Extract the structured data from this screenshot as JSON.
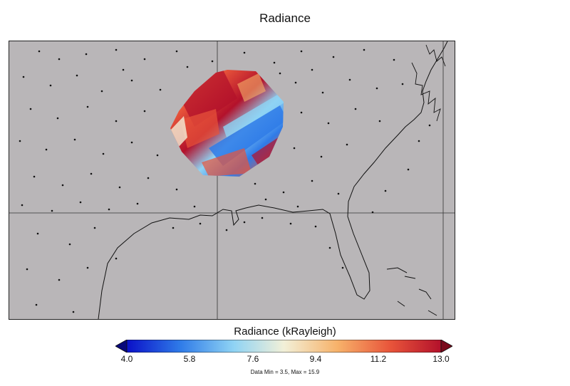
{
  "title": "Radiance",
  "colorbar": {
    "label": "Radiance (kRayleigh)",
    "ticks": [
      "4.0",
      "5.8",
      "7.6",
      "9.4",
      "11.2",
      "13.0"
    ],
    "min": 4.0,
    "max": 13.0,
    "colormap": [
      "#0a10c8",
      "#2f7be8",
      "#8fd3f4",
      "#f2f0d8",
      "#f7b26a",
      "#e8543a",
      "#b3112b"
    ]
  },
  "footnote": "Data Min = 3.5, Max = 15.9",
  "colors": {
    "land_ocean": "#b9b6b8",
    "coastline": "#111111",
    "grid": "#333333"
  }
}
